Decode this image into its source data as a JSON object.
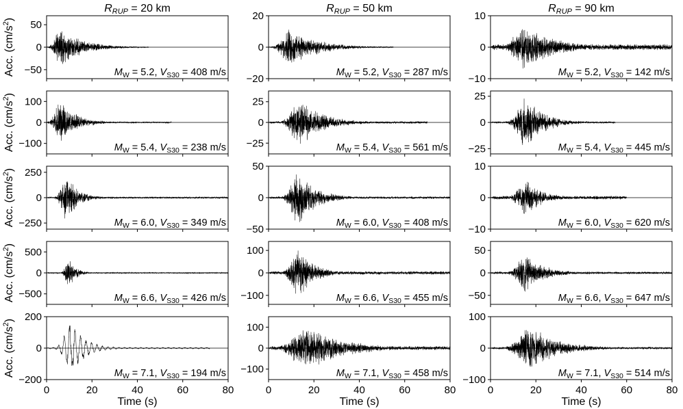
{
  "figure": {
    "x_axis_label": "Time (s)",
    "y_axis_label_text": "Acc. (cm/s",
    "y_axis_label_sup": "2",
    "y_axis_label_close": ")",
    "x_ticks": [
      0,
      20,
      40,
      60,
      80
    ]
  },
  "chart_data": [
    {
      "type": "line",
      "title": "R_RUP = 20 km",
      "column_title": {
        "sym": "R",
        "sub": "RUP",
        "rest": " = 20 km"
      },
      "annotation": {
        "mw": "5.2",
        "vs30": "408 m/s"
      },
      "xlim": [
        0,
        80
      ],
      "ylim": [
        -70,
        70
      ],
      "yticks": [
        -50,
        0,
        50
      ],
      "xticks": [
        0,
        20,
        40,
        60,
        80
      ],
      "envelope": {
        "peak_time": 6,
        "peak_amplitude": 45,
        "rise": 3,
        "decay": 10,
        "noise_floor": 1,
        "end_time": 45
      }
    },
    {
      "type": "line",
      "column_title": {
        "sym": "R",
        "sub": "RUP",
        "rest": " = 50 km"
      },
      "annotation": {
        "mw": "5.2",
        "vs30": "287 m/s"
      },
      "xlim": [
        0,
        80
      ],
      "ylim": [
        -20,
        20
      ],
      "yticks": [
        -20,
        0,
        20
      ],
      "xticks": [
        0,
        20,
        40,
        60,
        80
      ],
      "envelope": {
        "peak_time": 10,
        "peak_amplitude": 12,
        "rise": 5,
        "decay": 12,
        "noise_floor": 0.5,
        "end_time": 55
      }
    },
    {
      "type": "line",
      "column_title": {
        "sym": "R",
        "sub": "RUP",
        "rest": " = 90 km"
      },
      "annotation": {
        "mw": "5.2",
        "vs30": "142 m/s"
      },
      "xlim": [
        0,
        80
      ],
      "ylim": [
        -10,
        10
      ],
      "yticks": [
        -10,
        0,
        10
      ],
      "xticks": [
        0,
        20,
        40,
        60,
        80
      ],
      "envelope": {
        "peak_time": 15,
        "peak_amplitude": 7,
        "rise": 6,
        "decay": 15,
        "noise_floor": 1,
        "end_time": 80
      }
    },
    {
      "type": "line",
      "annotation": {
        "mw": "5.4",
        "vs30": "238 m/s"
      },
      "xlim": [
        0,
        80
      ],
      "ylim": [
        -150,
        150
      ],
      "yticks": [
        -100,
        0,
        100
      ],
      "xticks": [
        0,
        20,
        40,
        60,
        80
      ],
      "envelope": {
        "peak_time": 6,
        "peak_amplitude": 115,
        "rise": 3,
        "decay": 7,
        "noise_floor": 4,
        "end_time": 55
      }
    },
    {
      "type": "line",
      "annotation": {
        "mw": "5.4",
        "vs30": "561 m/s"
      },
      "xlim": [
        0,
        80
      ],
      "ylim": [
        -38,
        38
      ],
      "yticks": [
        -25,
        0,
        25
      ],
      "xticks": [
        0,
        20,
        40,
        60,
        80
      ],
      "envelope": {
        "peak_time": 14,
        "peak_amplitude": 30,
        "rise": 5,
        "decay": 10,
        "noise_floor": 1.5,
        "end_time": 70
      }
    },
    {
      "type": "line",
      "annotation": {
        "mw": "5.4",
        "vs30": "445 m/s"
      },
      "xlim": [
        0,
        80
      ],
      "ylim": [
        -30,
        30
      ],
      "yticks": [
        -25,
        0,
        25
      ],
      "xticks": [
        0,
        20,
        40,
        60,
        80
      ],
      "envelope": {
        "peak_time": 16,
        "peak_amplitude": 26,
        "rise": 5,
        "decay": 8,
        "noise_floor": 1,
        "end_time": 55
      }
    },
    {
      "type": "line",
      "annotation": {
        "mw": "6.0",
        "vs30": "349 m/s"
      },
      "xlim": [
        0,
        80
      ],
      "ylim": [
        -310,
        310
      ],
      "yticks": [
        -250,
        0,
        250
      ],
      "xticks": [
        0,
        20,
        40,
        60,
        80
      ],
      "envelope": {
        "peak_time": 9,
        "peak_amplitude": 260,
        "rise": 3,
        "decay": 5,
        "noise_floor": 10,
        "end_time": 80
      }
    },
    {
      "type": "line",
      "annotation": {
        "mw": "6.0",
        "vs30": "408 m/s"
      },
      "xlim": [
        0,
        80
      ],
      "ylim": [
        -50,
        50
      ],
      "yticks": [
        -50,
        0,
        50
      ],
      "xticks": [
        0,
        20,
        40,
        60,
        80
      ],
      "envelope": {
        "peak_time": 13,
        "peak_amplitude": 45,
        "rise": 4,
        "decay": 8,
        "noise_floor": 2,
        "end_time": 80
      }
    },
    {
      "type": "line",
      "annotation": {
        "mw": "6.0",
        "vs30": "620 m/s"
      },
      "xlim": [
        0,
        80
      ],
      "ylim": [
        -10,
        10
      ],
      "yticks": [
        -10,
        0,
        10
      ],
      "xticks": [
        0,
        20,
        40,
        60,
        80
      ],
      "envelope": {
        "peak_time": 16,
        "peak_amplitude": 6,
        "rise": 5,
        "decay": 7,
        "noise_floor": 0.6,
        "end_time": 60
      }
    },
    {
      "type": "line",
      "annotation": {
        "mw": "6.6",
        "vs30": "426 m/s"
      },
      "xlim": [
        0,
        80
      ],
      "ylim": [
        -750,
        750
      ],
      "yticks": [
        -500,
        0,
        500
      ],
      "xticks": [
        0,
        20,
        40,
        60,
        80
      ],
      "envelope": {
        "peak_time": 10,
        "peak_amplitude": 400,
        "rise": 2,
        "decay": 3,
        "noise_floor": 15,
        "end_time": 80
      }
    },
    {
      "type": "line",
      "annotation": {
        "mw": "6.6",
        "vs30": "455 m/s"
      },
      "xlim": [
        0,
        80
      ],
      "ylim": [
        -140,
        140
      ],
      "yticks": [
        -100,
        0,
        100
      ],
      "xticks": [
        0,
        20,
        40,
        60,
        80
      ],
      "envelope": {
        "peak_time": 13,
        "peak_amplitude": 120,
        "rise": 4,
        "decay": 7,
        "noise_floor": 8,
        "end_time": 80
      }
    },
    {
      "type": "line",
      "annotation": {
        "mw": "6.6",
        "vs30": "647 m/s"
      },
      "xlim": [
        0,
        80
      ],
      "ylim": [
        -70,
        70
      ],
      "yticks": [
        -50,
        0,
        50
      ],
      "xticks": [
        0,
        20,
        40,
        60,
        80
      ],
      "envelope": {
        "peak_time": 16,
        "peak_amplitude": 45,
        "rise": 5,
        "decay": 8,
        "noise_floor": 3,
        "end_time": 80
      }
    },
    {
      "type": "line",
      "annotation": {
        "mw": "7.1",
        "vs30": "194 m/s"
      },
      "xlim": [
        0,
        80
      ],
      "ylim": [
        -200,
        200
      ],
      "yticks": [
        -200,
        0,
        200
      ],
      "xticks": [
        0,
        20,
        40,
        60,
        80
      ],
      "envelope": {
        "peak_time": 11,
        "peak_amplitude": 170,
        "rise": 4,
        "decay": 6,
        "noise_floor": 5,
        "end_time": 72
      },
      "low_frequency": true
    },
    {
      "type": "line",
      "annotation": {
        "mw": "7.1",
        "vs30": "458 m/s"
      },
      "xlim": [
        0,
        80
      ],
      "ylim": [
        -150,
        150
      ],
      "yticks": [
        -100,
        0,
        100
      ],
      "xticks": [
        0,
        20,
        40,
        60,
        80
      ],
      "envelope": {
        "peak_time": 17,
        "peak_amplitude": 110,
        "rise": 8,
        "decay": 16,
        "noise_floor": 10,
        "end_time": 80
      }
    },
    {
      "type": "line",
      "annotation": {
        "mw": "7.1",
        "vs30": "514 m/s"
      },
      "xlim": [
        0,
        80
      ],
      "ylim": [
        -100,
        100
      ],
      "yticks": [
        -100,
        0,
        100
      ],
      "xticks": [
        0,
        20,
        40,
        60,
        80
      ],
      "envelope": {
        "peak_time": 18,
        "peak_amplitude": 75,
        "rise": 7,
        "decay": 12,
        "noise_floor": 4,
        "end_time": 80
      }
    }
  ]
}
